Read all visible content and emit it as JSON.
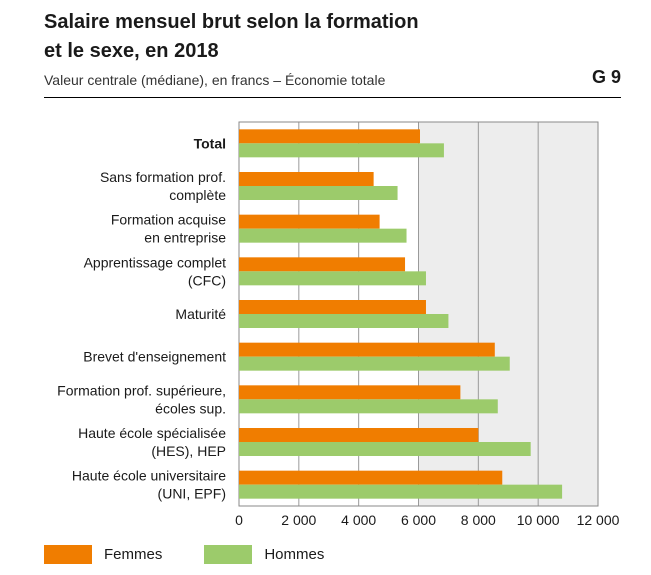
{
  "header": {
    "title": "Salaire mensuel brut selon la formation\net le sexe, en 2018",
    "subtitle": "Valeur centrale (médiane), en francs – Économie totale",
    "figure_number": "G 9"
  },
  "colors": {
    "femmes": "#f07d00",
    "hommes": "#9ccb6b",
    "shaded_band": "#ededed",
    "gridline": "#9a9a9a"
  },
  "chart_data": {
    "type": "bar",
    "orientation": "horizontal",
    "title": "Salaire mensuel brut selon la formation et le sexe, en 2018",
    "subtitle": "Valeur centrale (médiane), en francs – Économie totale",
    "categories": [
      "Total",
      "Sans formation prof.\ncomplète",
      "Formation acquise\nen entreprise",
      "Apprentissage complet\n(CFC)",
      "Maturité",
      "Brevet d'enseignement",
      "Formation prof. supérieure,\nécoles sup.",
      "Haute école spécialisée\n(HES), HEP",
      "Haute école universitaire\n(UNI, EPF)"
    ],
    "bold_categories": [
      "Total"
    ],
    "series": [
      {
        "name": "Femmes",
        "color": "#f07d00",
        "values": [
          6050,
          4500,
          4700,
          5550,
          6250,
          8550,
          7400,
          8000,
          8800
        ]
      },
      {
        "name": "Hommes",
        "color": "#9ccb6b",
        "values": [
          6850,
          5300,
          5600,
          6250,
          7000,
          9050,
          8650,
          9750,
          10800
        ]
      }
    ],
    "xlim": [
      0,
      12000
    ],
    "xticks": [
      0,
      2000,
      4000,
      6000,
      8000,
      10000,
      12000
    ],
    "xtick_labels": [
      "0",
      "2 000",
      "4 000",
      "6 000",
      "8 000",
      "10 000",
      "12 000"
    ],
    "shaded_range": [
      6000,
      12000
    ],
    "grid": true,
    "legend_position": "bottom-left"
  }
}
